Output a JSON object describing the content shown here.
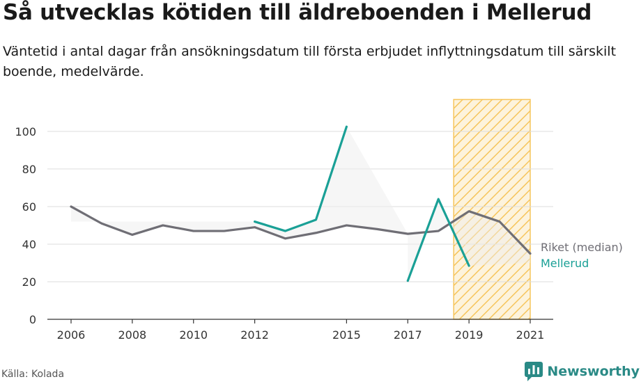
{
  "header": {
    "title": "Så utvecklas kötiden till äldreboenden i Mellerud",
    "subtitle": "Väntetid i antal dagar från ansökningsdatum till första erbjudet inflyttningsdatum till särskilt boende, medelvärde."
  },
  "footer": {
    "source": "Källa: Kolada",
    "brand": "Newsworthy"
  },
  "colors": {
    "riket": "#6f6e75",
    "mellerud": "#1aa096",
    "highlight_fill": "#fbeecf",
    "highlight_stroke": "#f6c55c",
    "gap_shade": "#eeeeee",
    "grid": "#dddddd"
  },
  "chart_data": {
    "type": "line",
    "x_ticks": [
      2006,
      2008,
      2010,
      2012,
      2015,
      2017,
      2019,
      2021
    ],
    "y_ticks": [
      0,
      20,
      40,
      60,
      80,
      100
    ],
    "xlim": [
      2005.5,
      2021.8
    ],
    "ylim": [
      0,
      117
    ],
    "highlight_range": [
      2018.5,
      2021
    ],
    "grid": "horizontal",
    "legend_placement": "end-of-lines",
    "series": [
      {
        "name": "Riket (median)",
        "color": "#6f6e75",
        "points": [
          [
            2006,
            60
          ],
          [
            2007,
            51
          ],
          [
            2008,
            45
          ],
          [
            2009,
            50
          ],
          [
            2010,
            47
          ],
          [
            2011,
            47
          ],
          [
            2012,
            49
          ],
          [
            2013,
            43
          ],
          [
            2014,
            46
          ],
          [
            2015,
            50
          ],
          [
            2016,
            48
          ],
          [
            2017,
            45.5
          ],
          [
            2018,
            47
          ],
          [
            2019,
            57.5
          ],
          [
            2020,
            52
          ],
          [
            2021,
            35
          ]
        ]
      },
      {
        "name": "Mellerud",
        "color": "#1aa096",
        "segments": [
          [
            [
              2012,
              52
            ],
            [
              2013,
              47
            ],
            [
              2014,
              53
            ],
            [
              2015,
              102.5
            ]
          ],
          [
            [
              2017,
              20.5
            ],
            [
              2018,
              64
            ],
            [
              2019,
              28.5
            ]
          ]
        ]
      }
    ]
  }
}
